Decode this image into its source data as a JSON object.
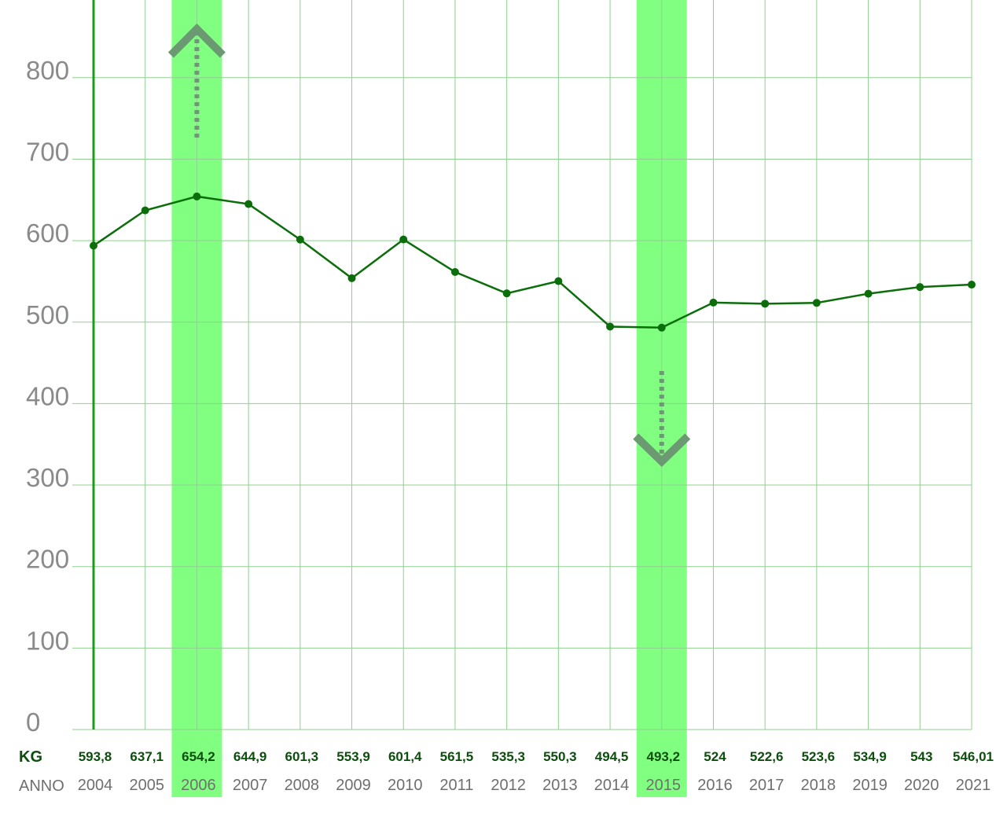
{
  "chart_data": {
    "type": "line",
    "row_labels": {
      "values": "KG",
      "years": "ANNO"
    },
    "categories": [
      "2004",
      "2005",
      "2006",
      "2007",
      "2008",
      "2009",
      "2010",
      "2011",
      "2012",
      "2013",
      "2014",
      "2015",
      "2016",
      "2017",
      "2018",
      "2019",
      "2020",
      "2021"
    ],
    "value_labels": [
      "593,8",
      "637,1",
      "654,2",
      "644,9",
      "601,3",
      "553,9",
      "601,4",
      "561,5",
      "535,3",
      "550,3",
      "494,5",
      "493,2",
      "524",
      "522,6",
      "523,6",
      "534,9",
      "543",
      "546,01"
    ],
    "values": [
      593.8,
      637.1,
      654.2,
      644.9,
      601.3,
      553.9,
      601.4,
      561.5,
      535.3,
      550.3,
      494.5,
      493.2,
      524,
      522.6,
      523.6,
      534.9,
      543,
      546.01
    ],
    "ylim": [
      0,
      800
    ],
    "yticks": [
      "0",
      "100",
      "200",
      "300",
      "400",
      "500",
      "600",
      "700",
      "800"
    ],
    "grid": true,
    "highlighted": [
      {
        "category": "2006",
        "marker": "up-arrow"
      },
      {
        "category": "2015",
        "marker": "down-arrow"
      }
    ],
    "colors": {
      "line": "#0b6e0b",
      "highlight": "#80ff80",
      "grid": "#8fcf8f",
      "axis": "#1a9e1a",
      "arrow": "#6b9a72"
    }
  }
}
